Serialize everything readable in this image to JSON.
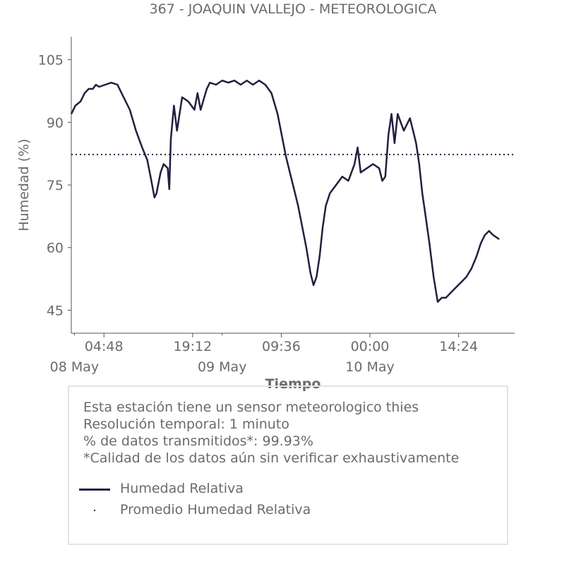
{
  "chart_data": {
    "type": "line",
    "title": "367 - JOAQUIN VALLEJO - METEOROLOGICA",
    "xlabel": "Tiempo",
    "ylabel": "Humedad (%)",
    "ylim": [
      39.5,
      110.5
    ],
    "yticks": [
      45,
      60,
      75,
      90,
      105
    ],
    "xlim": [
      "2024-05-07 23:30",
      "2024-05-10 23:30"
    ],
    "xticks": [
      {
        "time": "2024-05-08 04:48",
        "label": "04:48"
      },
      {
        "time": "2024-05-08 19:12",
        "label": "19:12"
      },
      {
        "time": "2024-05-09 09:36",
        "label": "09:36"
      },
      {
        "time": "2024-05-10 00:00",
        "label": "00:00"
      },
      {
        "time": "2024-05-10 14:24",
        "label": "14:24"
      }
    ],
    "date_ticks": [
      {
        "time": "2024-05-08 00:00",
        "label": "08 May"
      },
      {
        "time": "2024-05-09 00:00",
        "label": "09 May"
      },
      {
        "time": "2024-05-10 00:00",
        "label": "10 May"
      }
    ],
    "grid": false,
    "mean_line": {
      "name": "Promedio Humedad Relativa",
      "value": 82.3
    },
    "series": [
      {
        "name": "Humedad Relativa",
        "color": "#20203f",
        "points": [
          [
            "2024-05-07 23:30",
            92
          ],
          [
            "2024-05-08 00:10",
            94
          ],
          [
            "2024-05-08 01:00",
            95
          ],
          [
            "2024-05-08 01:40",
            97
          ],
          [
            "2024-05-08 02:20",
            98
          ],
          [
            "2024-05-08 03:00",
            98
          ],
          [
            "2024-05-08 03:30",
            99
          ],
          [
            "2024-05-08 04:00",
            98.5
          ],
          [
            "2024-05-08 05:00",
            99
          ],
          [
            "2024-05-08 06:00",
            99.5
          ],
          [
            "2024-05-08 07:00",
            99
          ],
          [
            "2024-05-08 08:00",
            96
          ],
          [
            "2024-05-08 09:00",
            93
          ],
          [
            "2024-05-08 10:00",
            88
          ],
          [
            "2024-05-08 11:00",
            84
          ],
          [
            "2024-05-08 11:50",
            81
          ],
          [
            "2024-05-08 12:30",
            76
          ],
          [
            "2024-05-08 13:00",
            72
          ],
          [
            "2024-05-08 13:20",
            73
          ],
          [
            "2024-05-08 14:00",
            78
          ],
          [
            "2024-05-08 14:30",
            80
          ],
          [
            "2024-05-08 15:10",
            79
          ],
          [
            "2024-05-08 15:25",
            74
          ],
          [
            "2024-05-08 15:40",
            86
          ],
          [
            "2024-05-08 16:10",
            94
          ],
          [
            "2024-05-08 16:40",
            88
          ],
          [
            "2024-05-08 17:30",
            96
          ],
          [
            "2024-05-08 18:30",
            95
          ],
          [
            "2024-05-08 19:30",
            93
          ],
          [
            "2024-05-08 20:00",
            97
          ],
          [
            "2024-05-08 20:30",
            93
          ],
          [
            "2024-05-08 21:30",
            98
          ],
          [
            "2024-05-08 22:00",
            99.5
          ],
          [
            "2024-05-08 23:00",
            99
          ],
          [
            "2024-05-09 00:00",
            100
          ],
          [
            "2024-05-09 01:00",
            99.5
          ],
          [
            "2024-05-09 02:00",
            100
          ],
          [
            "2024-05-09 03:00",
            99
          ],
          [
            "2024-05-09 04:00",
            100
          ],
          [
            "2024-05-09 05:00",
            99
          ],
          [
            "2024-05-09 06:00",
            100
          ],
          [
            "2024-05-09 07:00",
            99
          ],
          [
            "2024-05-09 08:00",
            97
          ],
          [
            "2024-05-09 09:00",
            92
          ],
          [
            "2024-05-09 09:40",
            87
          ],
          [
            "2024-05-09 10:20",
            82
          ],
          [
            "2024-05-09 11:00",
            78
          ],
          [
            "2024-05-09 11:40",
            74
          ],
          [
            "2024-05-09 12:20",
            70
          ],
          [
            "2024-05-09 13:00",
            65
          ],
          [
            "2024-05-09 13:40",
            60
          ],
          [
            "2024-05-09 14:20",
            54
          ],
          [
            "2024-05-09 14:50",
            51
          ],
          [
            "2024-05-09 15:20",
            53
          ],
          [
            "2024-05-09 15:50",
            58
          ],
          [
            "2024-05-09 16:20",
            65
          ],
          [
            "2024-05-09 16:50",
            70
          ],
          [
            "2024-05-09 17:30",
            73
          ],
          [
            "2024-05-09 18:30",
            75
          ],
          [
            "2024-05-09 19:30",
            77
          ],
          [
            "2024-05-09 20:30",
            76
          ],
          [
            "2024-05-09 21:30",
            80
          ],
          [
            "2024-05-09 22:00",
            84
          ],
          [
            "2024-05-09 22:30",
            78
          ],
          [
            "2024-05-09 23:30",
            79
          ],
          [
            "2024-05-10 00:30",
            80
          ],
          [
            "2024-05-10 01:30",
            79
          ],
          [
            "2024-05-10 02:00",
            76
          ],
          [
            "2024-05-10 02:30",
            77
          ],
          [
            "2024-05-10 03:00",
            87
          ],
          [
            "2024-05-10 03:30",
            92
          ],
          [
            "2024-05-10 04:00",
            85
          ],
          [
            "2024-05-10 04:30",
            92
          ],
          [
            "2024-05-10 05:30",
            88
          ],
          [
            "2024-05-10 06:30",
            91
          ],
          [
            "2024-05-10 07:00",
            88
          ],
          [
            "2024-05-10 07:30",
            85
          ],
          [
            "2024-05-10 08:00",
            80
          ],
          [
            "2024-05-10 08:30",
            73
          ],
          [
            "2024-05-10 09:00",
            68
          ],
          [
            "2024-05-10 09:40",
            61
          ],
          [
            "2024-05-10 10:20",
            53
          ],
          [
            "2024-05-10 11:00",
            47
          ],
          [
            "2024-05-10 11:40",
            48
          ],
          [
            "2024-05-10 12:20",
            48
          ],
          [
            "2024-05-10 13:00",
            49
          ],
          [
            "2024-05-10 13:40",
            50
          ],
          [
            "2024-05-10 14:20",
            51
          ],
          [
            "2024-05-10 15:00",
            52
          ],
          [
            "2024-05-10 15:40",
            53
          ],
          [
            "2024-05-10 16:30",
            55
          ],
          [
            "2024-05-10 17:20",
            58
          ],
          [
            "2024-05-10 18:00",
            61
          ],
          [
            "2024-05-10 18:40",
            63
          ],
          [
            "2024-05-10 19:20",
            64
          ],
          [
            "2024-05-10 20:00",
            63
          ],
          [
            "2024-05-10 21:00",
            62
          ]
        ]
      }
    ]
  },
  "info": {
    "lines": [
      "Esta estación tiene un sensor meteorologico thies",
      "Resolución temporal: 1 minuto",
      "% de datos transmitidos*: 99.93%",
      "*Calidad de los datos aún sin verificar exhaustivamente"
    ]
  },
  "legend": {
    "items": [
      {
        "label": "Humedad Relativa"
      },
      {
        "label": "Promedio Humedad Relativa"
      }
    ]
  }
}
